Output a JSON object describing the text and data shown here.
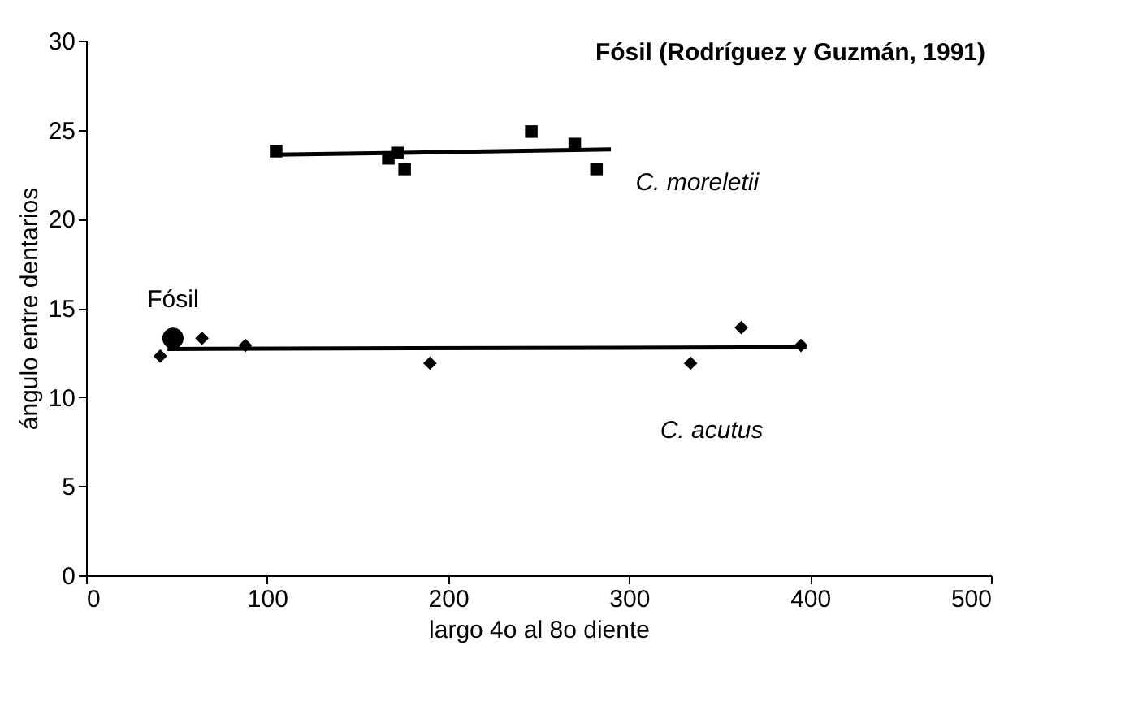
{
  "chart_data": {
    "type": "scatter",
    "title": "Fósil (Rodríguez y Guzmán, 1991)",
    "xlabel": "largo 4o al 8o diente",
    "ylabel": "ángulo entre dentarios",
    "xlim": [
      0,
      500
    ],
    "xticks": [
      0,
      100,
      200,
      300,
      400,
      500
    ],
    "ylim": [
      0,
      30
    ],
    "yticks": [
      0,
      5,
      10,
      15,
      20,
      25,
      30
    ],
    "grid": false,
    "series": [
      {
        "name": "C. moreletii",
        "marker": "square",
        "color": "#000000",
        "x": [
          105,
          167,
          172,
          176,
          246,
          270,
          282
        ],
        "values": [
          23.8,
          23.4,
          23.7,
          22.8,
          24.9,
          24.2,
          22.8
        ]
      },
      {
        "name": "C. acutus",
        "marker": "diamond",
        "color": "#000000",
        "x": [
          41,
          50,
          64,
          88,
          190,
          334,
          362,
          395
        ],
        "values": [
          12.3,
          null,
          13.3,
          12.9,
          11.9,
          11.9,
          13.9,
          12.9
        ]
      },
      {
        "marker": "circle",
        "color": "#000000",
        "x": [
          48
        ],
        "values": [
          13.3
        ]
      },
      {
        "type": "line",
        "color": "#000000",
        "x": [
          105,
          290
        ],
        "values": [
          23.6,
          23.9
        ]
      },
      {
        "type": "line",
        "color": "#000000",
        "x": [
          45,
          398
        ],
        "values": [
          12.7,
          12.8
        ]
      }
    ],
    "annotations": [
      {
        "text": "Fósil",
        "x": 48,
        "y": 13.3
      }
    ]
  }
}
